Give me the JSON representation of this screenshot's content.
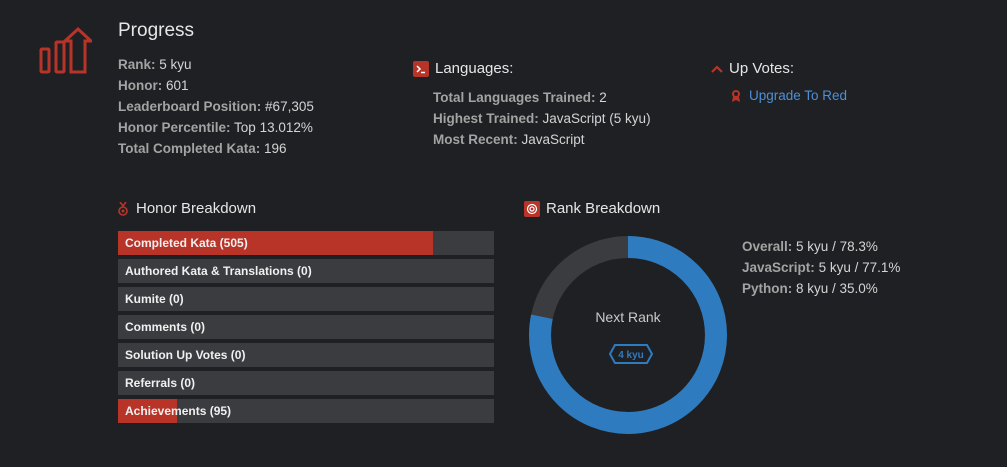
{
  "progress": {
    "title": "Progress",
    "stats": [
      {
        "label": "Rank:",
        "value": "5 kyu"
      },
      {
        "label": "Honor:",
        "value": "601"
      },
      {
        "label": "Leaderboard Position:",
        "value": "#67,305"
      },
      {
        "label": "Honor Percentile:",
        "value": "Top 13.012%"
      },
      {
        "label": "Total Completed Kata:",
        "value": "196"
      }
    ]
  },
  "languages": {
    "title": "Languages:",
    "stats": [
      {
        "label": "Total Languages Trained:",
        "value": "2"
      },
      {
        "label": "Highest Trained:",
        "value": "JavaScript (5 kyu)"
      },
      {
        "label": "Most Recent:",
        "value": "JavaScript"
      }
    ]
  },
  "upvotes": {
    "title": "Up Votes:",
    "link": "Upgrade To Red"
  },
  "honor_breakdown": {
    "title": "Honor Breakdown",
    "bars": [
      {
        "label": "Completed Kata (505)",
        "fill": 0.838
      },
      {
        "label": "Authored Kata & Translations (0)",
        "fill": 0
      },
      {
        "label": "Kumite (0)",
        "fill": 0
      },
      {
        "label": "Comments (0)",
        "fill": 0
      },
      {
        "label": "Solution Up Votes (0)",
        "fill": 0
      },
      {
        "label": "Referrals (0)",
        "fill": 0
      },
      {
        "label": "Achievements (95)",
        "fill": 0.158
      }
    ]
  },
  "rank_breakdown": {
    "title": "Rank Breakdown",
    "next_rank_label": "Next Rank",
    "next_rank_value": "4 kyu",
    "progress": 0.783,
    "stats": [
      {
        "label": "Overall:",
        "value": "5 kyu / 78.3%"
      },
      {
        "label": "JavaScript:",
        "value": "5 kyu / 77.1%"
      },
      {
        "label": "Python:",
        "value": "8 kyu / 35.0%"
      }
    ]
  },
  "colors": {
    "accent_red": "#b83428",
    "accent_blue": "#2e7bbf",
    "link_blue": "#4e8fd6",
    "bar_bg": "#3b3c40",
    "background": "#1f2023"
  }
}
